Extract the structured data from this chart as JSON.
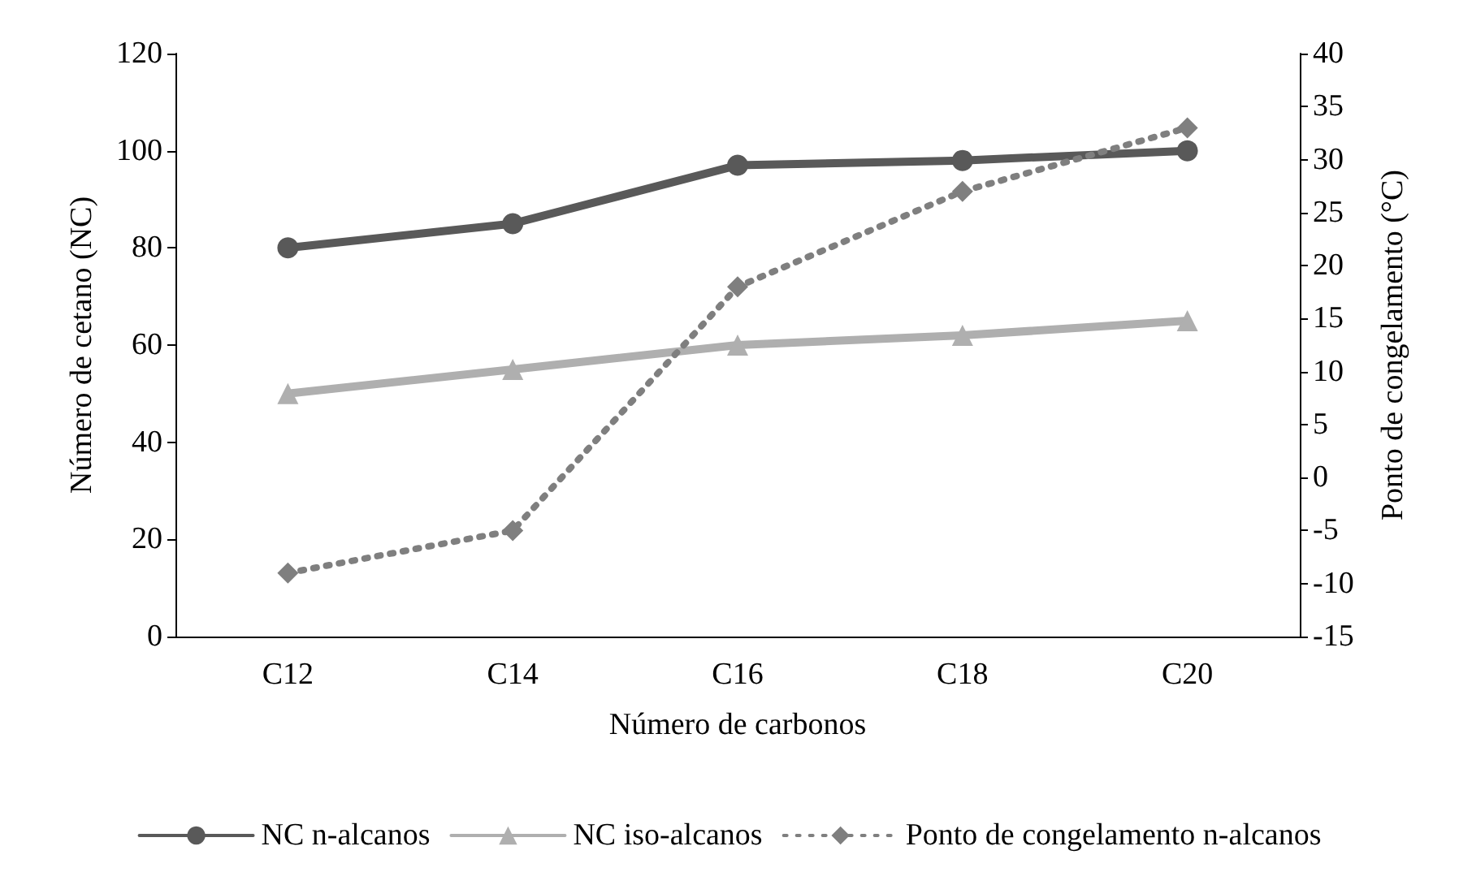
{
  "chart_data": {
    "type": "line",
    "xlabel": "Número de carbonos",
    "ylabel": "Número de cetano (NC)",
    "y2label": "Ponto de congelamento (°C)",
    "categories": [
      "C12",
      "C14",
      "C16",
      "C18",
      "C20"
    ],
    "series": [
      {
        "name": "NC n-alcanos",
        "color": "#595959",
        "marker": "circle",
        "line_style": "solid",
        "values": [
          80,
          85,
          97,
          98,
          100
        ]
      },
      {
        "name": "NC iso-alcanos",
        "color": "#afafaf",
        "marker": "triangle",
        "line_style": "solid",
        "values": [
          50,
          55,
          60,
          62,
          65
        ]
      },
      {
        "name": "Ponto de congelamento n-alcanos",
        "color": "#7f7f7f",
        "marker": "diamond",
        "line_style": "dotted",
        "axis": "y2",
        "values": [
          -9,
          -5,
          18,
          27,
          33
        ]
      }
    ],
    "ylim": [
      0,
      120
    ],
    "yticks": [
      0,
      20,
      40,
      60,
      80,
      100,
      120
    ],
    "y2lim": [
      -15,
      40
    ],
    "y2ticks": [
      -15,
      -10,
      -5,
      0,
      5,
      10,
      15,
      20,
      25,
      30,
      35,
      40
    ],
    "grid": false,
    "legend": "bottom"
  }
}
